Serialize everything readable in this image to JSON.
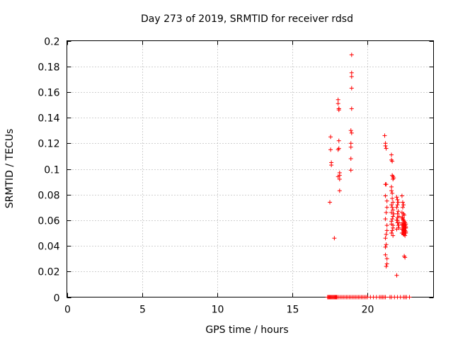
{
  "chart_data": {
    "type": "scatter",
    "title": "Day 273 of 2019, SRMTID for receiver rdsd",
    "xlabel": "GPS time / hours",
    "ylabel": "SRMTID / TECUs",
    "xlim": [
      0,
      24.4
    ],
    "ylim": [
      0,
      0.2
    ],
    "xticks": [
      0,
      5,
      10,
      15,
      20
    ],
    "xtick_labels": [
      "0",
      "5",
      "10",
      "15",
      "20"
    ],
    "yticks": [
      0,
      0.02,
      0.04,
      0.06,
      0.08,
      0.1,
      0.12,
      0.14,
      0.16,
      0.18,
      0.2
    ],
    "ytick_labels": [
      "0",
      "0.02",
      "0.04",
      "0.06",
      "0.08",
      "0.1",
      "0.12",
      "0.14",
      "0.16",
      "0.18",
      "0.2"
    ],
    "grid": true,
    "marker_color": "#ff0000",
    "marker": "plus",
    "series": [
      {
        "x": [
          17.5,
          17.55,
          17.55,
          17.6,
          17.6,
          17.8,
          18.05,
          18.05,
          18.1,
          18.1,
          18.1,
          18.1,
          18.15,
          18.15,
          18.15,
          18.1,
          18.05,
          18.05,
          18.15,
          18.95,
          18.95,
          18.95,
          18.95,
          18.95,
          18.9,
          18.9,
          18.9,
          18.9,
          18.9,
          18.95,
          21.15,
          21.2,
          21.2,
          21.25,
          21.25,
          21.2,
          21.2,
          21.3,
          21.3,
          21.25,
          21.2,
          21.3,
          21.3,
          21.25,
          21.2,
          21.25,
          21.2,
          21.2,
          21.3,
          21.3,
          21.25,
          21.6,
          21.6,
          21.65,
          21.65,
          21.7,
          21.7,
          21.75,
          21.6,
          21.6,
          21.65,
          21.65,
          21.7,
          21.6,
          21.65,
          21.7,
          21.6,
          21.75,
          21.7,
          21.65,
          21.6,
          21.6,
          21.7,
          21.7,
          21.65,
          21.6,
          21.7,
          21.95,
          22.0,
          22.05,
          22.0,
          21.95,
          22.05,
          22.0,
          22.1,
          21.95,
          22.0,
          22.05,
          22.1,
          21.95,
          22.0,
          22.1,
          21.95,
          22.0,
          22.3,
          22.35,
          22.4,
          22.35,
          22.3,
          22.4,
          22.45,
          22.3,
          22.35,
          22.4,
          22.45,
          22.5,
          22.55,
          22.3,
          22.35,
          22.4,
          22.45,
          22.5,
          22.55,
          22.3,
          22.35,
          22.4,
          22.45,
          22.5,
          22.55,
          22.3,
          22.35,
          22.4,
          22.45,
          22.5,
          22.35,
          22.4,
          22.45,
          22.5,
          22.55,
          22.45,
          22.5,
          22.4,
          22.45,
          22.5,
          22.55,
          22.45,
          22.5,
          22.55,
          17.35,
          17.4,
          17.45,
          17.5,
          17.55,
          17.6,
          17.65,
          17.7,
          17.75,
          17.8,
          17.85,
          17.9,
          17.95,
          18.0,
          18.1,
          18.2,
          18.3,
          18.4,
          18.5,
          18.6,
          18.7,
          18.8,
          18.9,
          19.0,
          19.1,
          19.2,
          19.3,
          19.4,
          19.5,
          19.6,
          19.7,
          19.8,
          19.9,
          20.0,
          20.2,
          20.4,
          20.6,
          20.8,
          20.9,
          21.0,
          21.1,
          21.2,
          21.5,
          21.6,
          21.8,
          22.0,
          22.2,
          22.4,
          22.5,
          22.6,
          22.8
        ],
        "y": [
          0.074,
          0.125,
          0.115,
          0.105,
          0.103,
          0.046,
          0.154,
          0.151,
          0.147,
          0.146,
          0.122,
          0.116,
          0.097,
          0.095,
          0.083,
          0.147,
          0.115,
          0.094,
          0.092,
          0.189,
          0.175,
          0.172,
          0.163,
          0.147,
          0.13,
          0.12,
          0.117,
          0.108,
          0.099,
          0.128,
          0.126,
          0.12,
          0.118,
          0.116,
          0.088,
          0.088,
          0.079,
          0.075,
          0.07,
          0.066,
          0.061,
          0.056,
          0.052,
          0.049,
          0.046,
          0.041,
          0.039,
          0.033,
          0.03,
          0.026,
          0.024,
          0.111,
          0.107,
          0.106,
          0.095,
          0.094,
          0.092,
          0.093,
          0.086,
          0.083,
          0.081,
          0.077,
          0.074,
          0.072,
          0.07,
          0.068,
          0.066,
          0.065,
          0.063,
          0.061,
          0.059,
          0.057,
          0.056,
          0.054,
          0.052,
          0.05,
          0.048,
          0.078,
          0.076,
          0.074,
          0.072,
          0.07,
          0.067,
          0.065,
          0.063,
          0.06,
          0.058,
          0.056,
          0.054,
          0.053,
          0.06,
          0.058,
          0.017,
          0.062,
          0.079,
          0.074,
          0.072,
          0.07,
          0.066,
          0.065,
          0.064,
          0.062,
          0.061,
          0.06,
          0.059,
          0.058,
          0.057,
          0.057,
          0.056,
          0.055,
          0.055,
          0.054,
          0.054,
          0.053,
          0.053,
          0.052,
          0.052,
          0.051,
          0.051,
          0.05,
          0.05,
          0.049,
          0.049,
          0.048,
          0.062,
          0.06,
          0.058,
          0.056,
          0.054,
          0.032,
          0.031,
          0.058,
          0.057,
          0.056,
          0.055,
          0.053,
          0.052,
          0.05,
          0,
          0,
          0,
          0,
          0,
          0,
          0,
          0,
          0,
          0,
          0,
          0,
          0,
          0,
          0,
          0,
          0,
          0,
          0,
          0,
          0,
          0,
          0,
          0,
          0,
          0,
          0,
          0,
          0,
          0,
          0,
          0,
          0,
          0,
          0,
          0,
          0,
          0,
          0,
          0,
          0,
          0,
          0,
          0,
          0,
          0,
          0,
          0,
          0,
          0,
          0
        ]
      }
    ]
  }
}
